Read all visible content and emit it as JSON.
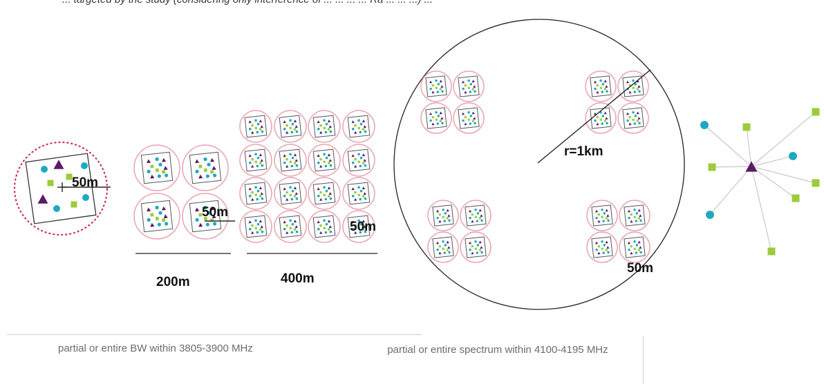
{
  "header_fragment": "... targeted by the study (considering only interference of ... ... ... ... Ra ... ... ...) ...",
  "labels": {
    "single_cell_radius": "50m",
    "cluster4_radius": "50m",
    "cluster16_radius": "50m",
    "width_200": "200m",
    "width_400": "400m",
    "big_radius": "r=1km",
    "big_small_radius": "50m"
  },
  "captions": {
    "left": "partial or entire BW within 3805-3900 MHz",
    "right": "partial or entire spectrum within 4100-4195 MHz"
  },
  "colors": {
    "ring": "#e8a4b4",
    "dashed_ring": "#d0204a",
    "triangle": "#5b1a66",
    "teal": "#1fa9c1",
    "green": "#9ccb3b",
    "line": "#222222",
    "star_line": "#c9c9c9",
    "caption": "#6b6b6b"
  }
}
